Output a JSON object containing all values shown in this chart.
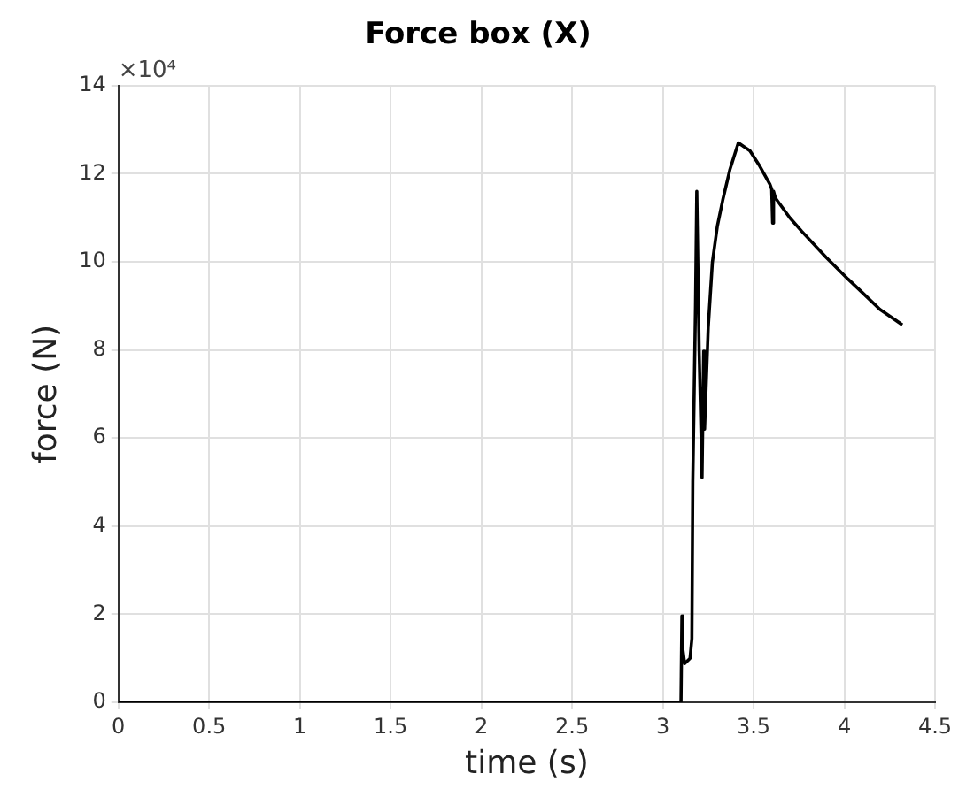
{
  "chart_data": {
    "type": "line",
    "title": "Force box (X)",
    "xlabel": "time (s)",
    "ylabel": "force (N)",
    "annotations": [
      "×10⁴"
    ],
    "xlim": [
      0,
      4.5
    ],
    "xticks": [
      0,
      0.5,
      1,
      1.5,
      2,
      2.5,
      3,
      3.5,
      4,
      4.5
    ],
    "ylim": [
      0,
      14
    ],
    "yticks": [
      0,
      2,
      4,
      6,
      8,
      10,
      12,
      14
    ],
    "grid": true,
    "legend": false,
    "marker": "none",
    "line_style": "solid",
    "series": [
      {
        "color": "#000000",
        "x": [
          0,
          1,
          2,
          3,
          3.1,
          3.105,
          3.11,
          3.12,
          3.15,
          3.16,
          3.165,
          3.18,
          3.187,
          3.2,
          3.216,
          3.225,
          3.23,
          3.25,
          3.273,
          3.3,
          3.33,
          3.37,
          3.416,
          3.48,
          3.53,
          3.59,
          3.6,
          3.605,
          3.61,
          3.62,
          3.7,
          3.766,
          3.9,
          4.02,
          4.1,
          4.196,
          4.32
        ],
        "values": [
          0,
          0,
          0,
          0,
          0,
          1.96,
          1.2,
          0.88,
          1,
          1.45,
          5,
          9,
          11.6,
          8,
          5.1,
          7.97,
          6.2,
          8.5,
          9.99,
          10.8,
          11.4,
          12.1,
          12.7,
          12.52,
          12.2,
          11.76,
          11.65,
          10.88,
          11.6,
          11.45,
          11,
          10.69,
          10.1,
          9.61,
          9.3,
          8.92,
          8.57
        ]
      }
    ]
  }
}
